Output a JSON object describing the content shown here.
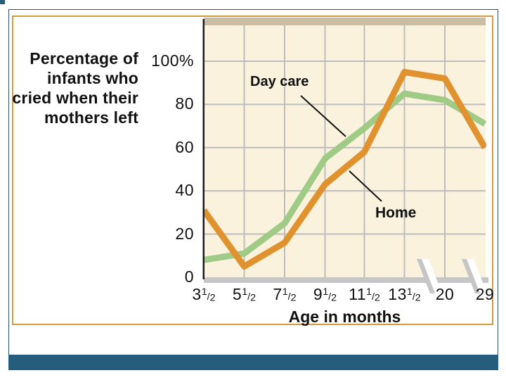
{
  "slide": {
    "y_axis_title_lines": [
      "Percentage of",
      "infants who",
      "cried when their",
      "mothers left"
    ]
  },
  "chart_data": {
    "type": "line",
    "xlabel": "Age in months",
    "ylabel": "Percentage of infants who cried when their mothers left",
    "categories": [
      "3½",
      "5½",
      "7½",
      "9½",
      "11½",
      "13½",
      "20",
      "29"
    ],
    "x_axis_breaks": [
      [
        "13½",
        "20"
      ],
      [
        "20",
        "29"
      ]
    ],
    "y_ticks": [
      {
        "label": "100%",
        "value": 100
      },
      {
        "label": "80",
        "value": 80
      },
      {
        "label": "60",
        "value": 60
      },
      {
        "label": "40",
        "value": 40
      },
      {
        "label": "20",
        "value": 20
      },
      {
        "label": "0",
        "value": 0
      }
    ],
    "ylim": [
      0,
      100
    ],
    "grid": true,
    "legend_position": "inline-annotations",
    "series": [
      {
        "name": "Day care",
        "color": "#9fcb86",
        "values": [
          8,
          11,
          25,
          55,
          69,
          85,
          82,
          71
        ]
      },
      {
        "name": "Home",
        "color": "#e0922f",
        "values": [
          31,
          5,
          16,
          43,
          58,
          95,
          92,
          60
        ]
      }
    ]
  },
  "colors": {
    "plot_bg": "#fbf2dd",
    "top_strip": "#cbbda2",
    "grid": "#bdbdbd",
    "axis_bar": "#c6c6c6",
    "axis_line": "#1a1a1a",
    "frame_border": "#d59a3a",
    "outer_border": "#2e5166",
    "accent_bar": "#265d7d",
    "text": "#111111"
  }
}
